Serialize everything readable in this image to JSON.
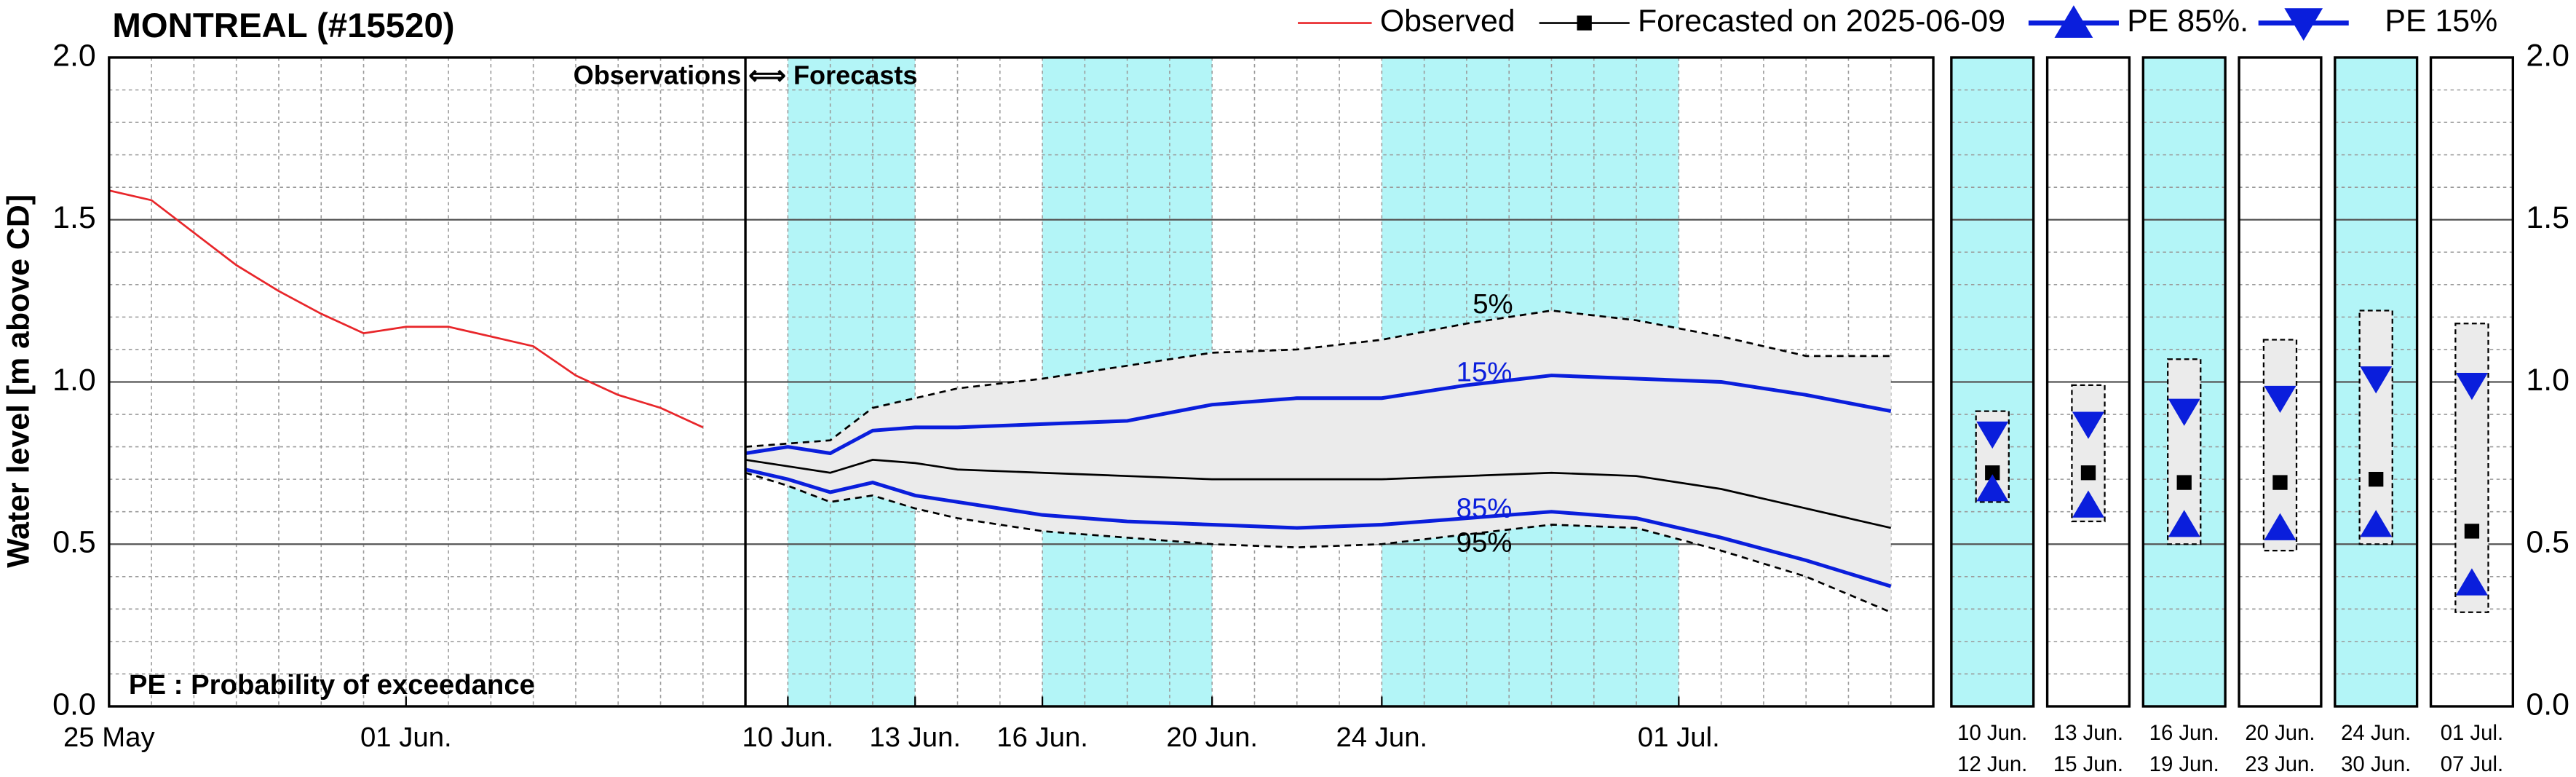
{
  "chart_data": {
    "type": "line",
    "title": "MONTREAL (#15520)",
    "y_label": "Water level [m above CD]",
    "note": "PE : Probability of exceedance",
    "divider_label": "Observations ⟺ Forecasts",
    "divider_at": "06-09",
    "legend": "top-right",
    "grid": true,
    "minor_ystep": 0.1,
    "xlim": [
      "05-25",
      "07-07"
    ],
    "xticks": [
      {
        "value": "05-25",
        "label": "25 May"
      },
      {
        "value": "06-01",
        "label": "01 Jun."
      },
      {
        "value": "06-10",
        "label": "10 Jun."
      },
      {
        "value": "06-13",
        "label": "13 Jun."
      },
      {
        "value": "06-16",
        "label": "16 Jun."
      },
      {
        "value": "06-20",
        "label": "20 Jun."
      },
      {
        "value": "06-24",
        "label": "24 Jun."
      },
      {
        "value": "07-01",
        "label": "01 Jul."
      }
    ],
    "ylim": [
      0,
      2
    ],
    "yticks": [
      {
        "value": 0,
        "label": "0.0"
      },
      0.5,
      {
        "value": 1,
        "label": "1.0"
      },
      1.5,
      {
        "value": 2,
        "label": "2.0"
      }
    ],
    "shade_color": "#b3f5f7",
    "shaded_periods": [
      [
        "06-10",
        "06-13"
      ],
      [
        "06-16",
        "06-20"
      ],
      [
        "06-24",
        "07-01"
      ]
    ],
    "series": [
      {
        "name": "Observed",
        "color": "#e8262a",
        "marker": "none",
        "x": [
          "05-25",
          "05-26",
          "05-27",
          "05-28",
          "05-29",
          "05-30",
          "05-31",
          "06-01",
          "06-02",
          "06-03",
          "06-04",
          "06-05",
          "06-06",
          "06-07",
          "06-08"
        ],
        "values": [
          1.59,
          1.56,
          1.46,
          1.36,
          1.28,
          1.21,
          1.15,
          1.17,
          1.17,
          1.14,
          1.11,
          1.02,
          0.96,
          0.92,
          0.86
        ]
      },
      {
        "name": "Forecasted on 2025-06-09",
        "color": "#000000",
        "marker": "square",
        "x": [
          "06-09",
          "06-10",
          "06-11",
          "06-12",
          "06-13",
          "06-14",
          "06-16",
          "06-18",
          "06-20",
          "06-22",
          "06-24",
          "06-26",
          "06-28",
          "06-30",
          "07-02",
          "07-04",
          "07-06"
        ],
        "values": [
          0.76,
          0.74,
          0.72,
          0.76,
          0.75,
          0.73,
          0.72,
          0.71,
          0.7,
          0.7,
          0.7,
          0.71,
          0.72,
          0.71,
          0.67,
          0.61,
          0.55
        ]
      },
      {
        "name": "PE 85%.",
        "curve_label": "85%",
        "color": "#0a1edc",
        "marker": "triangle-up",
        "x": [
          "06-09",
          "06-10",
          "06-11",
          "06-12",
          "06-13",
          "06-14",
          "06-16",
          "06-18",
          "06-20",
          "06-22",
          "06-24",
          "06-26",
          "06-28",
          "06-30",
          "07-02",
          "07-04",
          "07-06"
        ],
        "values": [
          0.73,
          0.7,
          0.66,
          0.69,
          0.65,
          0.63,
          0.59,
          0.57,
          0.56,
          0.55,
          0.56,
          0.58,
          0.6,
          0.58,
          0.52,
          0.45,
          0.37
        ]
      },
      {
        "name": "PE 15%",
        "curve_label": "15%",
        "color": "#0a1edc",
        "marker": "triangle-down",
        "x": [
          "06-09",
          "06-10",
          "06-11",
          "06-12",
          "06-13",
          "06-14",
          "06-16",
          "06-18",
          "06-20",
          "06-22",
          "06-24",
          "06-26",
          "06-28",
          "06-30",
          "07-02",
          "07-04",
          "07-06"
        ],
        "values": [
          0.78,
          0.8,
          0.78,
          0.85,
          0.86,
          0.86,
          0.87,
          0.88,
          0.93,
          0.95,
          0.95,
          0.99,
          1.02,
          1.01,
          1.0,
          0.96,
          0.91
        ]
      }
    ],
    "band": {
      "color": "#ebebeb",
      "x": [
        "06-09",
        "06-10",
        "06-11",
        "06-12",
        "06-13",
        "06-14",
        "06-16",
        "06-18",
        "06-20",
        "06-22",
        "06-24",
        "06-26",
        "06-28",
        "06-30",
        "07-02",
        "07-04",
        "07-06"
      ],
      "upper": {
        "label": "5%",
        "values": [
          0.8,
          0.81,
          0.82,
          0.92,
          0.95,
          0.98,
          1.01,
          1.05,
          1.09,
          1.1,
          1.13,
          1.18,
          1.22,
          1.19,
          1.14,
          1.08,
          1.08
        ]
      },
      "lower": {
        "label": "95%",
        "values": [
          0.72,
          0.68,
          0.63,
          0.65,
          0.61,
          0.58,
          0.54,
          0.52,
          0.5,
          0.49,
          0.5,
          0.53,
          0.56,
          0.55,
          0.48,
          0.4,
          0.29
        ]
      }
    },
    "panels": [
      {
        "start": "10 Jun.",
        "end": "12 Jun.",
        "shaded": true,
        "max": 0.91,
        "min": 0.63,
        "forecast": 0.72,
        "pe85": 0.67,
        "pe15": 0.84
      },
      {
        "start": "13 Jun.",
        "end": "15 Jun.",
        "shaded": false,
        "max": 0.99,
        "min": 0.57,
        "forecast": 0.72,
        "pe85": 0.62,
        "pe15": 0.87
      },
      {
        "start": "16 Jun.",
        "end": "19 Jun.",
        "shaded": true,
        "max": 1.07,
        "min": 0.5,
        "forecast": 0.69,
        "pe85": 0.56,
        "pe15": 0.91
      },
      {
        "start": "20 Jun.",
        "end": "23 Jun.",
        "shaded": false,
        "max": 1.13,
        "min": 0.48,
        "forecast": 0.69,
        "pe85": 0.55,
        "pe15": 0.95
      },
      {
        "start": "24 Jun.",
        "end": "30 Jun.",
        "shaded": true,
        "max": 1.22,
        "min": 0.5,
        "forecast": 0.7,
        "pe85": 0.56,
        "pe15": 1.01
      },
      {
        "start": "01 Jul.",
        "end": "07 Jul.",
        "shaded": false,
        "max": 1.18,
        "min": 0.29,
        "forecast": 0.54,
        "pe85": 0.38,
        "pe15": 0.99
      }
    ]
  }
}
